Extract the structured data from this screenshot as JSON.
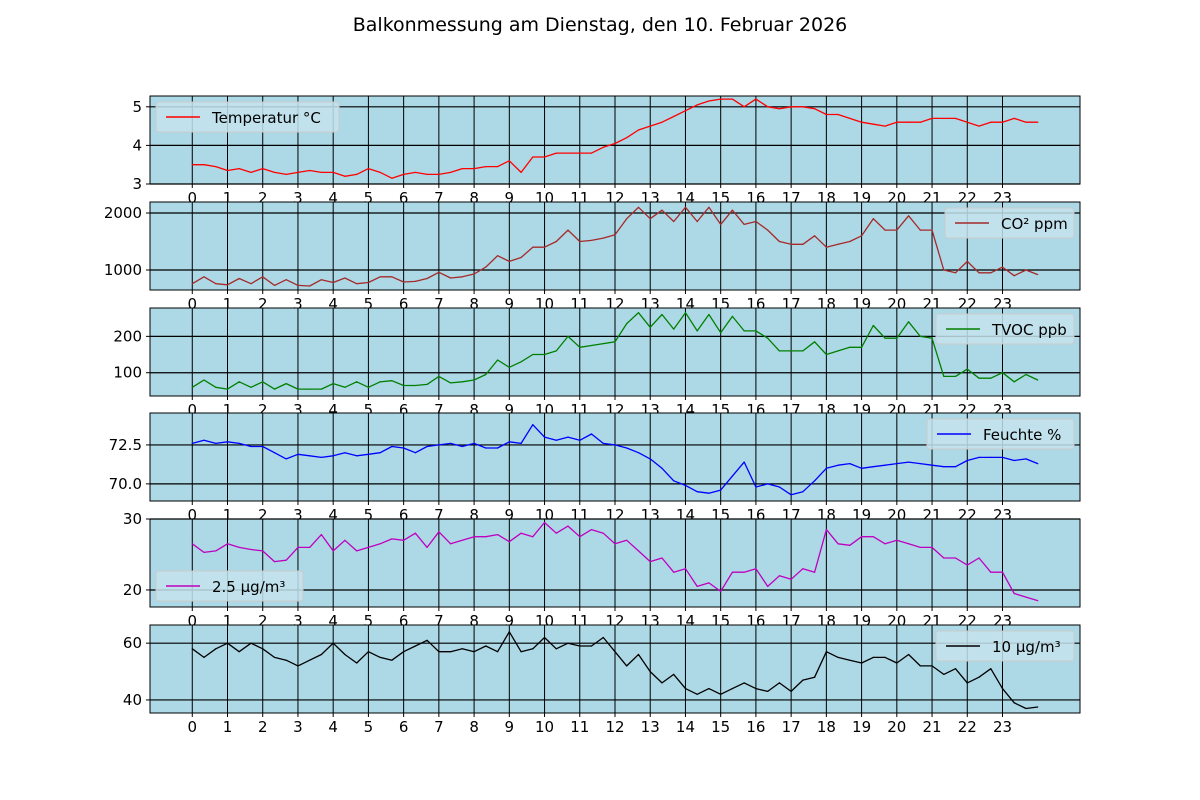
{
  "chart_data": {
    "type": "line",
    "title": "Balkonmessung am Dienstag, den 10. Februar 2026",
    "x_step_hours": 0.3333333,
    "xlim": [
      -1.2,
      25.2
    ],
    "xticks": [
      0,
      1,
      2,
      3,
      4,
      5,
      6,
      7,
      8,
      9,
      10,
      11,
      12,
      13,
      14,
      15,
      16,
      17,
      18,
      19,
      20,
      21,
      22,
      23
    ],
    "grid": true,
    "background": "#add8e6",
    "panels": [
      {
        "name": "Temperatur °C",
        "color": "#ff0000",
        "legend": "upper-left",
        "ylim": [
          3,
          5.28
        ],
        "yticks": [
          3,
          4,
          5
        ],
        "ytick_labels": [
          "3",
          "4",
          "5"
        ],
        "values": [
          3.5,
          3.5,
          3.45,
          3.35,
          3.4,
          3.3,
          3.4,
          3.3,
          3.25,
          3.3,
          3.35,
          3.3,
          3.3,
          3.2,
          3.25,
          3.4,
          3.3,
          3.15,
          3.25,
          3.3,
          3.25,
          3.25,
          3.3,
          3.4,
          3.4,
          3.45,
          3.45,
          3.6,
          3.3,
          3.7,
          3.7,
          3.8,
          3.8,
          3.8,
          3.8,
          3.95,
          4.05,
          4.2,
          4.4,
          4.5,
          4.6,
          4.75,
          4.9,
          5.05,
          5.15,
          5.2,
          5.2,
          5.0,
          5.2,
          5.0,
          4.95,
          5.0,
          5.0,
          4.95,
          4.8,
          4.8,
          4.7,
          4.6,
          4.55,
          4.5,
          4.6,
          4.6,
          4.6,
          4.7,
          4.7,
          4.7,
          4.6,
          4.5,
          4.6,
          4.6,
          4.7,
          4.6,
          4.6
        ]
      },
      {
        "name": "CO² ppm",
        "color": "#a52a2a",
        "legend": "upper-right",
        "ylim": [
          649,
          2193
        ],
        "yticks": [
          1000,
          2000
        ],
        "ytick_labels": [
          "1000",
          "2000"
        ],
        "values": [
          760,
          880,
          760,
          740,
          850,
          760,
          880,
          730,
          830,
          730,
          720,
          830,
          780,
          860,
          760,
          780,
          880,
          880,
          790,
          800,
          850,
          960,
          860,
          880,
          930,
          1050,
          1250,
          1150,
          1220,
          1400,
          1400,
          1500,
          1700,
          1500,
          1520,
          1560,
          1620,
          1900,
          2100,
          1900,
          2050,
          1850,
          2100,
          1850,
          2100,
          1800,
          2050,
          1800,
          1850,
          1700,
          1500,
          1450,
          1450,
          1600,
          1400,
          1450,
          1500,
          1600,
          1900,
          1700,
          1700,
          1950,
          1700,
          1700,
          1000,
          950,
          1150,
          950,
          950,
          1050,
          900,
          1000,
          920
        ]
      },
      {
        "name": "TVOC ppb",
        "color": "#008000",
        "legend": "upper-right",
        "ylim": [
          36,
          278
        ],
        "yticks": [
          100,
          200
        ],
        "ytick_labels": [
          "100",
          "200"
        ],
        "values": [
          60,
          80,
          60,
          55,
          75,
          60,
          75,
          55,
          70,
          55,
          55,
          55,
          70,
          60,
          75,
          60,
          75,
          78,
          65,
          65,
          68,
          90,
          72,
          75,
          80,
          95,
          135,
          115,
          130,
          150,
          150,
          160,
          200,
          170,
          175,
          180,
          185,
          235,
          265,
          225,
          260,
          220,
          265,
          215,
          260,
          210,
          255,
          215,
          215,
          195,
          160,
          160,
          160,
          185,
          150,
          160,
          170,
          170,
          230,
          195,
          195,
          240,
          200,
          195,
          90,
          90,
          110,
          85,
          85,
          100,
          75,
          95,
          80
        ]
      },
      {
        "name": "Feuchte %",
        "color": "#0000ff",
        "legend": "upper-right",
        "ylim": [
          68.9,
          74.55
        ],
        "yticks": [
          70.0,
          72.5
        ],
        "ytick_labels": [
          "70.0",
          "72.5"
        ],
        "values": [
          72.6,
          72.8,
          72.6,
          72.7,
          72.6,
          72.4,
          72.4,
          72.0,
          71.6,
          71.9,
          71.8,
          71.7,
          71.8,
          72.0,
          71.8,
          71.9,
          72.0,
          72.4,
          72.3,
          72.0,
          72.4,
          72.5,
          72.6,
          72.4,
          72.6,
          72.3,
          72.3,
          72.7,
          72.6,
          73.8,
          73.0,
          72.8,
          73.0,
          72.8,
          73.2,
          72.6,
          72.5,
          72.3,
          72.0,
          71.6,
          71.0,
          70.2,
          69.9,
          69.5,
          69.4,
          69.6,
          70.5,
          71.4,
          69.8,
          70.0,
          69.8,
          69.3,
          69.5,
          70.2,
          71.0,
          71.2,
          71.3,
          71.0,
          71.1,
          71.2,
          71.3,
          71.4,
          71.3,
          71.2,
          71.1,
          71.1,
          71.5,
          71.7,
          71.7,
          71.7,
          71.5,
          71.6,
          71.3
        ]
      },
      {
        "name": "2.5 µg/m³",
        "color": "#bf00bf",
        "legend": "lower-left",
        "ylim": [
          17.6,
          30
        ],
        "yticks": [
          20,
          30
        ],
        "ytick_labels": [
          "20",
          "30"
        ],
        "values": [
          26.5,
          25.3,
          25.5,
          26.5,
          26.0,
          25.7,
          25.5,
          24.0,
          24.2,
          26.0,
          26.0,
          27.8,
          25.5,
          27.0,
          25.5,
          26.0,
          26.5,
          27.2,
          27.0,
          28.0,
          26.0,
          28.2,
          26.5,
          27.0,
          27.5,
          27.5,
          27.8,
          26.8,
          28.0,
          27.5,
          29.5,
          28.0,
          29.0,
          27.5,
          28.5,
          28.0,
          26.5,
          27.0,
          25.5,
          24.0,
          24.5,
          22.5,
          23.0,
          20.5,
          21.0,
          19.8,
          22.5,
          22.5,
          23.0,
          20.5,
          22.0,
          21.5,
          23.0,
          22.5,
          28.5,
          26.5,
          26.3,
          27.5,
          27.5,
          26.5,
          27.0,
          26.5,
          26.0,
          26.0,
          24.5,
          24.5,
          23.5,
          24.5,
          22.5,
          22.5,
          19.5,
          19.0,
          18.5
        ]
      },
      {
        "name": "10 µg/m³",
        "color": "#000000",
        "legend": "upper-right",
        "ylim": [
          35.4,
          66.4
        ],
        "yticks": [
          40,
          60
        ],
        "ytick_labels": [
          "40",
          "60"
        ],
        "values": [
          58,
          55,
          58,
          60,
          57,
          60,
          58,
          55,
          54,
          52,
          54,
          56,
          60,
          56,
          53,
          57,
          55,
          54,
          57,
          59,
          61,
          57,
          57,
          58,
          57,
          59,
          57,
          64,
          57,
          58,
          62,
          58,
          60,
          59,
          59,
          62,
          57,
          52,
          56,
          50,
          46,
          49,
          44,
          42,
          44,
          42,
          44,
          46,
          44,
          43,
          46,
          43,
          47,
          48,
          57,
          55,
          54,
          53,
          55,
          55,
          53,
          56,
          52,
          52,
          49,
          51,
          46,
          48,
          51,
          44,
          39,
          37,
          37.5
        ]
      }
    ]
  }
}
